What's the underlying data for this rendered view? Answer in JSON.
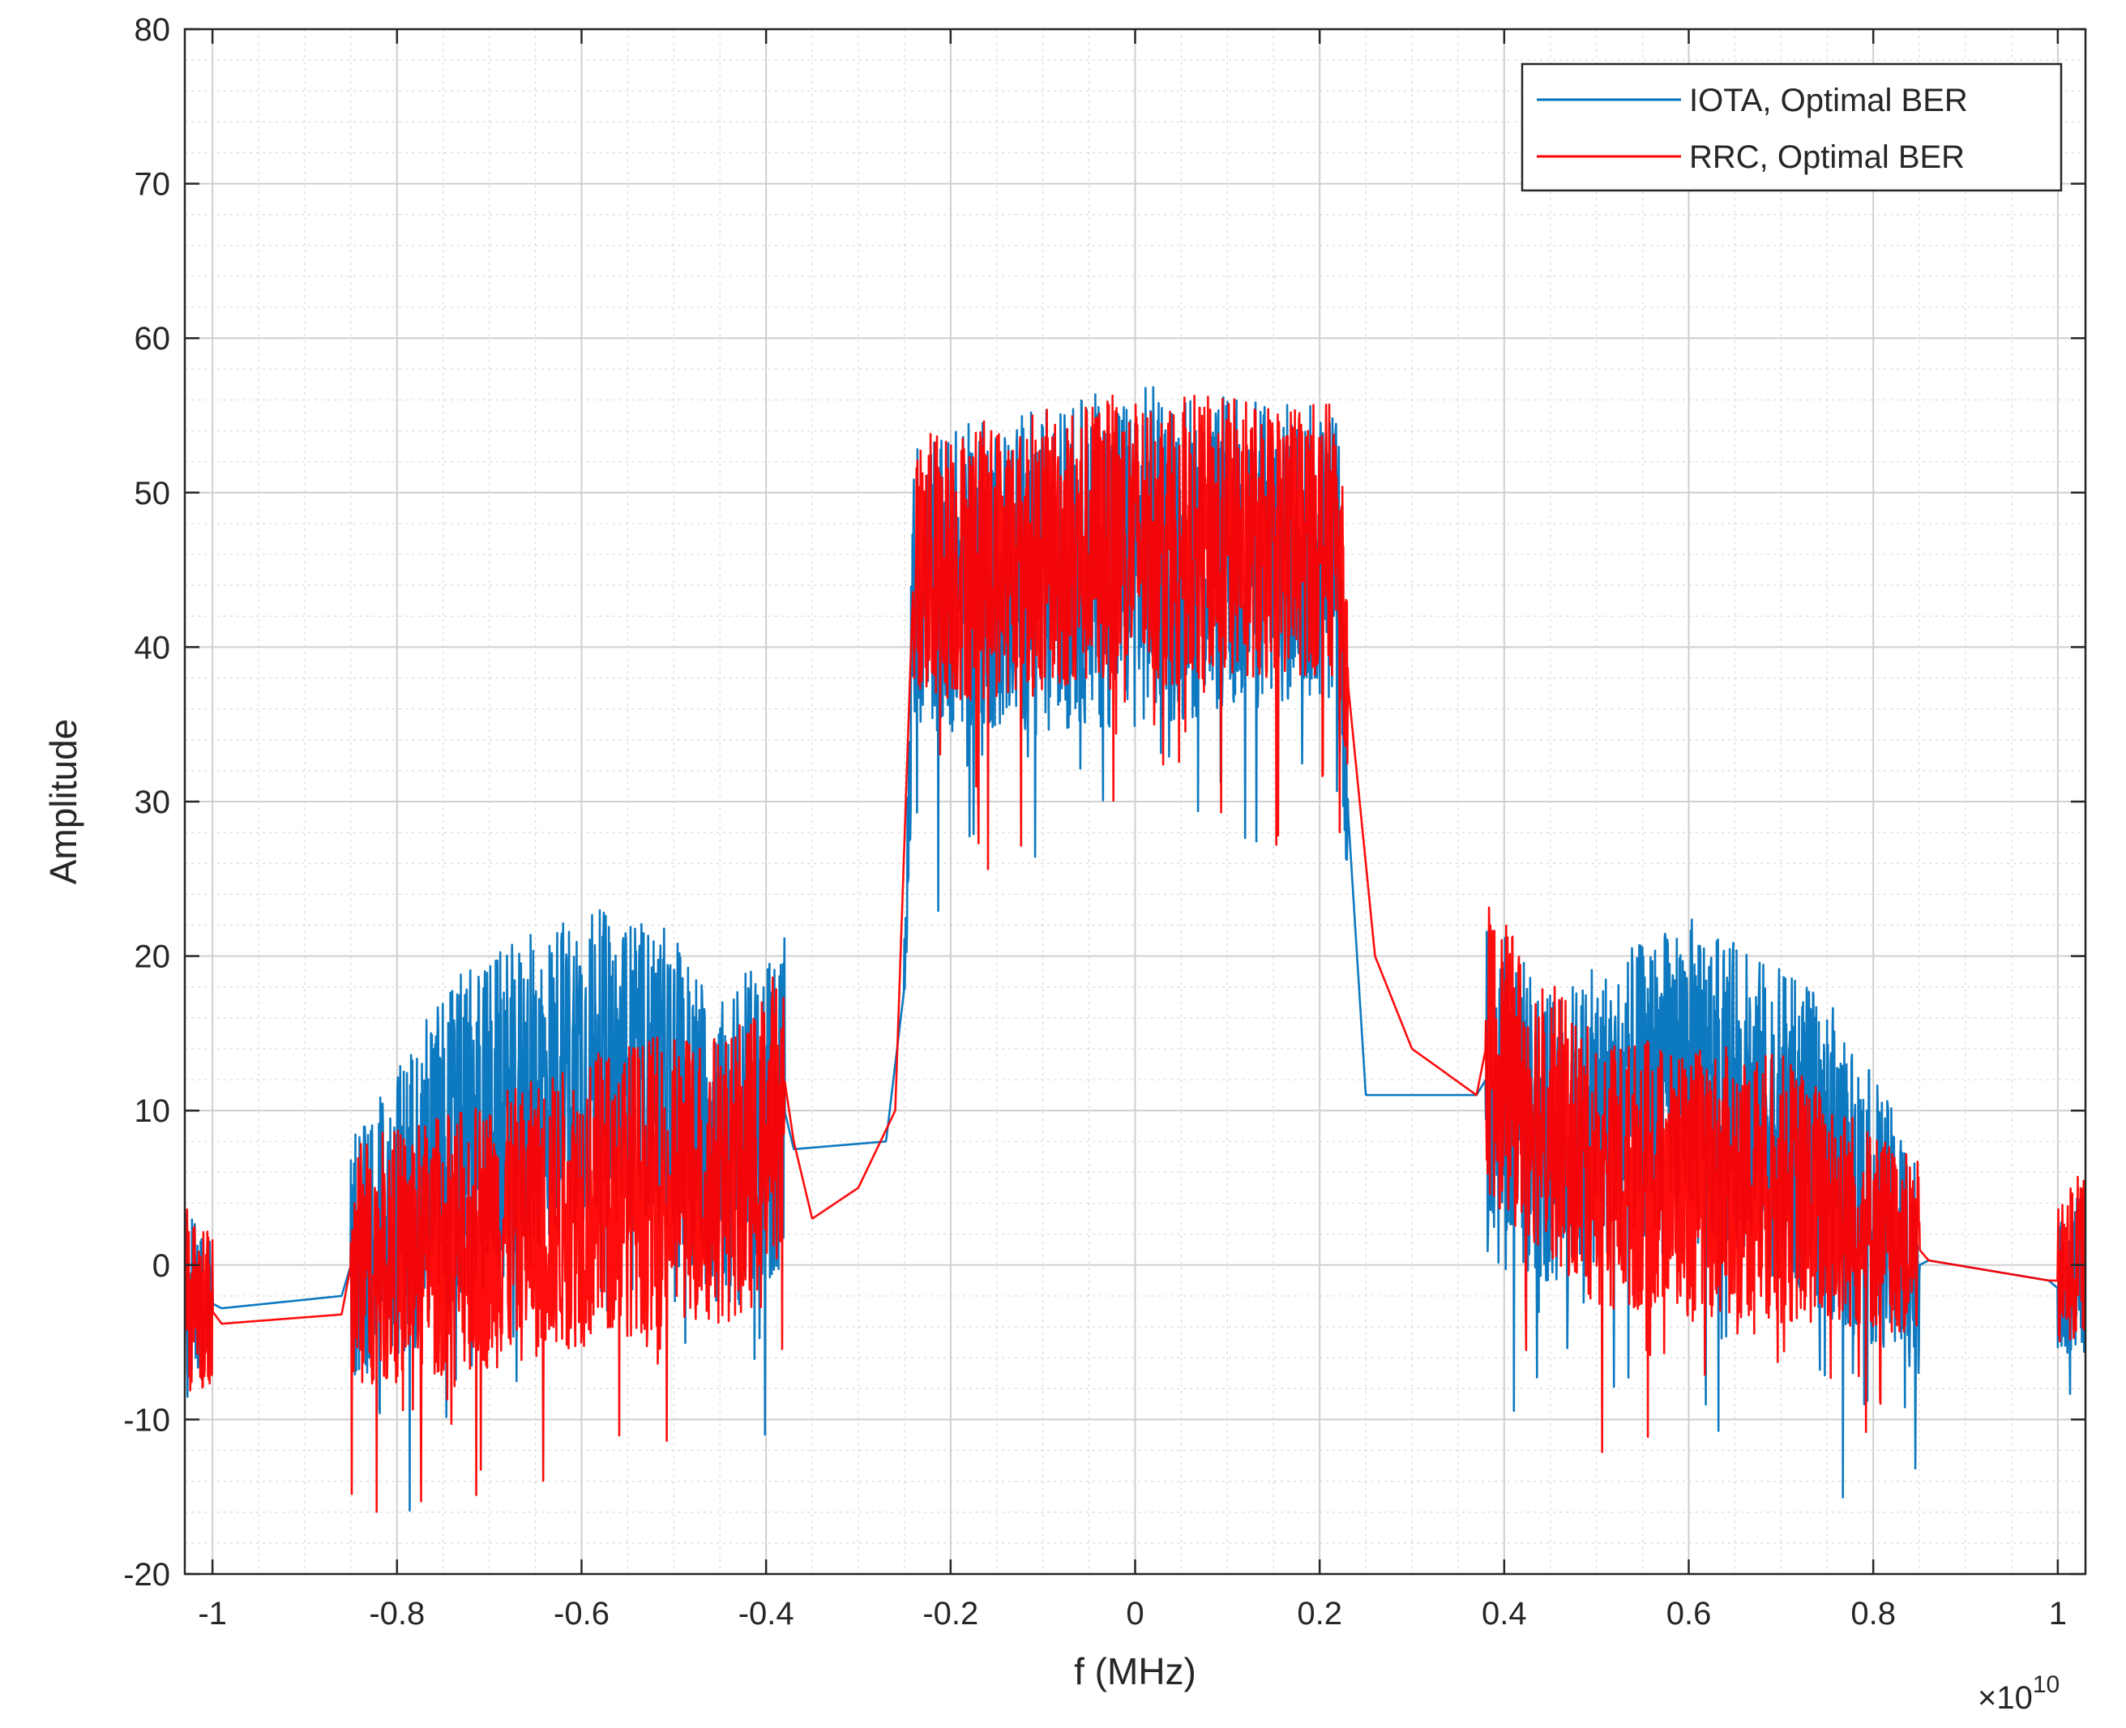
{
  "chart_data": {
    "type": "line",
    "title": "",
    "xlabel": "f (MHz)",
    "ylabel": "Amplitude",
    "x_exponent_label": "×10",
    "x_exponent_power": "10",
    "xlim": [
      -1.03,
      1.03
    ],
    "ylim": [
      -20,
      80
    ],
    "x_ticks": [
      -1,
      -0.8,
      -0.6,
      -0.4,
      -0.2,
      0,
      0.2,
      0.4,
      0.6,
      0.8,
      1
    ],
    "x_tick_labels": [
      "-1",
      "-0.8",
      "-0.6",
      "-0.4",
      "-0.2",
      "0",
      "0.2",
      "0.4",
      "0.6",
      "0.8",
      "1"
    ],
    "y_ticks": [
      -20,
      -10,
      0,
      10,
      20,
      30,
      40,
      50,
      60,
      70,
      80
    ],
    "y_tick_labels": [
      "-20",
      "-10",
      "0",
      "10",
      "20",
      "30",
      "40",
      "50",
      "60",
      "70",
      "80"
    ],
    "grid": true,
    "legend_position": "top-right",
    "series": [
      {
        "name": "IOTA, Optimal BER",
        "color": "#0072BD",
        "envelope": [
          {
            "x": -1.03,
            "mean": -1.5,
            "spread": 7
          },
          {
            "x": -1.0,
            "mean": -2.5,
            "spread": 5
          },
          {
            "x": -0.99,
            "mean": -2.8,
            "spread": 0
          },
          {
            "x": -0.86,
            "mean": -2.0,
            "spread": 0
          },
          {
            "x": -0.85,
            "mean": 0,
            "spread": 10
          },
          {
            "x": -0.75,
            "mean": 7,
            "spread": 14
          },
          {
            "x": -0.6,
            "mean": 13,
            "spread": 13
          },
          {
            "x": -0.5,
            "mean": 12,
            "spread": 12
          },
          {
            "x": -0.45,
            "mean": 7,
            "spread": 13
          },
          {
            "x": -0.38,
            "mean": 10,
            "spread": 14
          },
          {
            "x": -0.37,
            "mean": 7.5,
            "spread": 0
          },
          {
            "x": -0.27,
            "mean": 8,
            "spread": 0
          },
          {
            "x": -0.25,
            "mean": 18,
            "spread": 4
          },
          {
            "x": -0.24,
            "mean": 44,
            "spread": 12
          },
          {
            "x": 0,
            "mean": 46,
            "spread": 14
          },
          {
            "x": 0.22,
            "mean": 46,
            "spread": 12
          },
          {
            "x": 0.23,
            "mean": 30,
            "spread": 8
          },
          {
            "x": 0.25,
            "mean": 11,
            "spread": 0
          },
          {
            "x": 0.37,
            "mean": 11,
            "spread": 0
          },
          {
            "x": 0.38,
            "mean": 12,
            "spread": 15
          },
          {
            "x": 0.45,
            "mean": 8,
            "spread": 12
          },
          {
            "x": 0.6,
            "mean": 13,
            "spread": 12
          },
          {
            "x": 0.75,
            "mean": 7,
            "spread": 13
          },
          {
            "x": 0.85,
            "mean": 0,
            "spread": 9
          },
          {
            "x": 0.86,
            "mean": 0.3,
            "spread": 0
          },
          {
            "x": 0.99,
            "mean": -1.0,
            "spread": 0
          },
          {
            "x": 1.0,
            "mean": -1.5,
            "spread": 5
          },
          {
            "x": 1.03,
            "mean": -0.5,
            "spread": 7
          }
        ]
      },
      {
        "name": "RRC, Optimal BER",
        "color": "#FF0000",
        "envelope": [
          {
            "x": -1.03,
            "mean": -2,
            "spread": 8
          },
          {
            "x": -1.0,
            "mean": -3,
            "spread": 6
          },
          {
            "x": -0.99,
            "mean": -3.8,
            "spread": 0
          },
          {
            "x": -0.86,
            "mean": -3.2,
            "spread": 0
          },
          {
            "x": -0.85,
            "mean": 0,
            "spread": 10
          },
          {
            "x": -0.7,
            "mean": 2,
            "spread": 11
          },
          {
            "x": -0.55,
            "mean": 5,
            "spread": 12
          },
          {
            "x": -0.42,
            "mean": 6,
            "spread": 12
          },
          {
            "x": -0.38,
            "mean": 12,
            "spread": 11
          },
          {
            "x": -0.37,
            "mean": 8,
            "spread": 0
          },
          {
            "x": -0.35,
            "mean": 3,
            "spread": 0
          },
          {
            "x": -0.3,
            "mean": 5,
            "spread": 0
          },
          {
            "x": -0.26,
            "mean": 10,
            "spread": 0
          },
          {
            "x": -0.24,
            "mean": 45,
            "spread": 11
          },
          {
            "x": 0,
            "mean": 47,
            "spread": 12
          },
          {
            "x": 0.22,
            "mean": 47,
            "spread": 11
          },
          {
            "x": 0.23,
            "mean": 38,
            "spread": 8
          },
          {
            "x": 0.26,
            "mean": 20,
            "spread": 0
          },
          {
            "x": 0.3,
            "mean": 14,
            "spread": 0
          },
          {
            "x": 0.37,
            "mean": 11,
            "spread": 0
          },
          {
            "x": 0.38,
            "mean": 14,
            "spread": 12
          },
          {
            "x": 0.5,
            "mean": 6,
            "spread": 11
          },
          {
            "x": 0.7,
            "mean": 5,
            "spread": 11
          },
          {
            "x": 0.85,
            "mean": 1,
            "spread": 7
          },
          {
            "x": 0.86,
            "mean": 0.3,
            "spread": 0
          },
          {
            "x": 0.99,
            "mean": -1.0,
            "spread": 0
          },
          {
            "x": 1.0,
            "mean": -1,
            "spread": 6
          },
          {
            "x": 1.03,
            "mean": 1,
            "spread": 7
          }
        ]
      }
    ]
  }
}
